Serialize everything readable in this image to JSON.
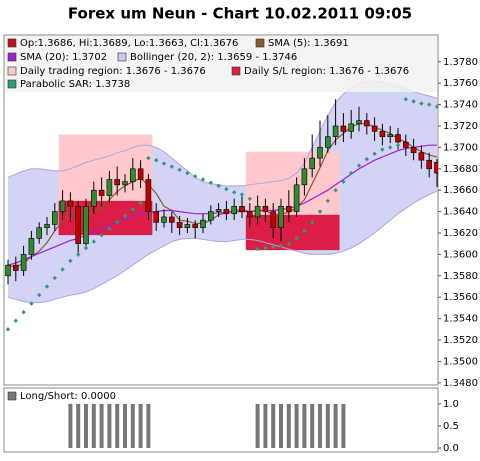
{
  "chart_data": {
    "type": "candlestick",
    "title": "Forex um Neun - Chart 10.02.2011 09:05",
    "ohlc_label": "Op:1.3686, Hi:1.3689, Lo:1.3663, Cl:1.3676",
    "legend_color": "#c0101a",
    "up_color": "#2e8b2e",
    "down_color": "#c00000",
    "open": [
      1.358,
      1.359,
      1.3585,
      1.36,
      1.3615,
      1.3625,
      1.3628,
      1.364,
      1.365,
      1.3645,
      1.361,
      1.3645,
      1.366,
      1.3655,
      1.367,
      1.3665,
      1.3668,
      1.368,
      1.367,
      1.364,
      1.363,
      1.3635,
      1.363,
      1.3625,
      1.3628,
      1.3625,
      1.3632,
      1.364,
      1.3642,
      1.3638,
      1.3645,
      1.364,
      1.3635,
      1.3645,
      1.364,
      1.3625,
      1.3645,
      1.364,
      1.3665,
      1.368,
      1.369,
      1.37,
      1.371,
      1.372,
      1.3715,
      1.3722,
      1.3725,
      1.372,
      1.3715,
      1.371,
      1.3712,
      1.3705,
      1.37,
      1.3695,
      1.3688,
      1.3686
    ],
    "high": [
      1.3595,
      1.3598,
      1.3608,
      1.3622,
      1.363,
      1.3635,
      1.3648,
      1.366,
      1.3658,
      1.365,
      1.3652,
      1.3668,
      1.3672,
      1.3678,
      1.3682,
      1.3675,
      1.369,
      1.3688,
      1.3675,
      1.3648,
      1.3642,
      1.364,
      1.3636,
      1.3634,
      1.3632,
      1.3638,
      1.3646,
      1.3648,
      1.365,
      1.3652,
      1.3656,
      1.3648,
      1.3655,
      1.3652,
      1.3648,
      1.3652,
      1.366,
      1.3672,
      1.369,
      1.3712,
      1.3725,
      1.373,
      1.3745,
      1.3732,
      1.3735,
      1.3738,
      1.3732,
      1.3728,
      1.3722,
      1.372,
      1.3718,
      1.3712,
      1.3708,
      1.3702,
      1.3695,
      1.3689
    ],
    "low": [
      1.3572,
      1.3575,
      1.358,
      1.3595,
      1.361,
      1.3618,
      1.3622,
      1.3632,
      1.363,
      1.3598,
      1.3605,
      1.3638,
      1.3645,
      1.3648,
      1.3655,
      1.3658,
      1.366,
      1.3662,
      1.3632,
      1.3622,
      1.3625,
      1.362,
      1.3618,
      1.362,
      1.3615,
      1.362,
      1.3628,
      1.3635,
      1.3632,
      1.3632,
      1.3634,
      1.3626,
      1.3628,
      1.363,
      1.3615,
      1.3612,
      1.363,
      1.3635,
      1.3655,
      1.3672,
      1.3682,
      1.3695,
      1.3702,
      1.3705,
      1.3708,
      1.3715,
      1.3712,
      1.3706,
      1.3702,
      1.3704,
      1.3698,
      1.3692,
      1.3688,
      1.368,
      1.3672,
      1.3663
    ],
    "close": [
      1.359,
      1.3585,
      1.36,
      1.3615,
      1.3625,
      1.3628,
      1.364,
      1.365,
      1.3645,
      1.361,
      1.3645,
      1.366,
      1.3655,
      1.367,
      1.3665,
      1.3668,
      1.368,
      1.367,
      1.364,
      1.363,
      1.3635,
      1.363,
      1.3625,
      1.3628,
      1.3625,
      1.3632,
      1.364,
      1.3642,
      1.3638,
      1.3645,
      1.364,
      1.3635,
      1.3645,
      1.364,
      1.3625,
      1.3645,
      1.364,
      1.3665,
      1.368,
      1.369,
      1.37,
      1.371,
      1.372,
      1.3715,
      1.3722,
      1.3725,
      1.372,
      1.3715,
      1.371,
      1.3712,
      1.3705,
      1.37,
      1.3695,
      1.3688,
      1.368,
      1.3676
    ],
    "ylim": [
      1.3478,
      1.3805
    ],
    "yticks": [
      {
        "value": 1.348,
        "label": "1.3480"
      },
      {
        "value": 1.35,
        "label": "1.3500"
      },
      {
        "value": 1.352,
        "label": "1.3520"
      },
      {
        "value": 1.354,
        "label": "1.3540"
      },
      {
        "value": 1.356,
        "label": "1.3560"
      },
      {
        "value": 1.358,
        "label": "1.3580"
      },
      {
        "value": 1.36,
        "label": "1.3600"
      },
      {
        "value": 1.362,
        "label": "1.3620"
      },
      {
        "value": 1.364,
        "label": "1.3640"
      },
      {
        "value": 1.366,
        "label": "1.3660"
      },
      {
        "value": 1.368,
        "label": "1.3680"
      },
      {
        "value": 1.37,
        "label": "1.3700"
      },
      {
        "value": 1.372,
        "label": "1.3720"
      },
      {
        "value": 1.374,
        "label": "1.3740"
      },
      {
        "value": 1.376,
        "label": "1.3760"
      },
      {
        "value": 1.378,
        "label": "1.3780"
      }
    ],
    "lines": [
      {
        "name": "SMA (5): 1.3691",
        "color": "#8b5a2b",
        "values": [
          1.359,
          1.3588,
          1.3592,
          1.3598,
          1.3603,
          1.3611,
          1.3622,
          1.3632,
          1.364,
          1.3635,
          1.3636,
          1.364,
          1.3643,
          1.3651,
          1.3659,
          1.3664,
          1.3668,
          1.3671,
          1.3665,
          1.3657,
          1.3645,
          1.3641,
          1.3632,
          1.3631,
          1.3629,
          1.3629,
          1.3632,
          1.3637,
          1.3639,
          1.3641,
          1.3642,
          1.364,
          1.3641,
          1.3641,
          1.3637,
          1.3638,
          1.3639,
          1.3644,
          1.3651,
          1.3666,
          1.3681,
          1.3697,
          1.3707,
          1.3713,
          1.3719,
          1.3722,
          1.3722,
          1.3719,
          1.3716,
          1.3713,
          1.3708,
          1.3705,
          1.37,
          1.3696,
          1.3693,
          1.3691
        ]
      },
      {
        "name": "SMA (20): 1.3702",
        "color": "#a020d0",
        "values": [
          1.359,
          1.3592,
          1.3595,
          1.3598,
          1.3601,
          1.3604,
          1.3607,
          1.361,
          1.3613,
          1.3615,
          1.3618,
          1.3621,
          1.3624,
          1.3627,
          1.363,
          1.3633,
          1.3636,
          1.3638,
          1.3639,
          1.364,
          1.3641,
          1.3641,
          1.364,
          1.3639,
          1.3638,
          1.3638,
          1.3638,
          1.3639,
          1.3639,
          1.364,
          1.364,
          1.364,
          1.3641,
          1.3641,
          1.3641,
          1.3642,
          1.3643,
          1.3645,
          1.3648,
          1.3652,
          1.3656,
          1.366,
          1.3665,
          1.367,
          1.3675,
          1.368,
          1.3684,
          1.3688,
          1.3691,
          1.3694,
          1.3697,
          1.3699,
          1.37,
          1.3701,
          1.3702,
          1.3702
        ]
      }
    ],
    "band": {
      "name": "Bollinger (20, 2): 1.3659 - 1.3746",
      "color": "#c8c8f4",
      "edge_color": "#a8a8e4",
      "upper": [
        1.3672,
        1.3675,
        1.3678,
        1.368,
        1.368,
        1.3679,
        1.3678,
        1.3678,
        1.368,
        1.3683,
        1.3686,
        1.3688,
        1.369,
        1.3692,
        1.3695,
        1.3697,
        1.37,
        1.3702,
        1.3702,
        1.37,
        1.3696,
        1.369,
        1.3684,
        1.3678,
        1.3672,
        1.3668,
        1.3666,
        1.3665,
        1.3664,
        1.3664,
        1.3664,
        1.3665,
        1.3666,
        1.3667,
        1.3668,
        1.3669,
        1.3671,
        1.3676,
        1.3685,
        1.37,
        1.3715,
        1.373,
        1.3742,
        1.375,
        1.3756,
        1.376,
        1.3762,
        1.3762,
        1.3761,
        1.3759,
        1.3757,
        1.3755,
        1.3752,
        1.375,
        1.3748,
        1.3746
      ],
      "lower": [
        1.356,
        1.3558,
        1.3556,
        1.3555,
        1.3555,
        1.3556,
        1.3558,
        1.356,
        1.3562,
        1.3563,
        1.3565,
        1.3568,
        1.3572,
        1.3576,
        1.358,
        1.3585,
        1.359,
        1.3595,
        1.36,
        1.3604,
        1.3608,
        1.3612,
        1.3614,
        1.3615,
        1.3615,
        1.3614,
        1.3613,
        1.3612,
        1.3612,
        1.3613,
        1.3614,
        1.3614,
        1.3613,
        1.3611,
        1.3609,
        1.3607,
        1.3605,
        1.3603,
        1.3601,
        1.36,
        1.36,
        1.36,
        1.3601,
        1.3603,
        1.3606,
        1.361,
        1.3615,
        1.362,
        1.3626,
        1.3632,
        1.3638,
        1.3643,
        1.3648,
        1.3652,
        1.3656,
        1.3659
      ]
    },
    "regions": [
      {
        "name": "Daily trading region: 1.3676 - 1.3676",
        "color": "#ffc8cc",
        "spans": [
          {
            "first": 7,
            "last": 18,
            "low": 1.362,
            "high": 1.3712
          },
          {
            "first": 31,
            "last": 42,
            "low": 1.3604,
            "high": 1.3696
          }
        ]
      },
      {
        "name": "Daily S/L region: 1.3676 - 1.3676",
        "color": "#dc1e46",
        "spans": [
          {
            "first": 7,
            "last": 18,
            "low": 1.3618,
            "high": 1.365
          },
          {
            "first": 31,
            "last": 42,
            "low": 1.3604,
            "high": 1.3637
          }
        ]
      }
    ],
    "sar": {
      "name": "Parabolic SAR: 1.3738",
      "color": "#2e9a7a",
      "values": [
        1.353,
        1.3538,
        1.3546,
        1.3554,
        1.3562,
        1.357,
        1.3578,
        1.3586,
        1.3594,
        1.36,
        1.3606,
        1.3612,
        1.3618,
        1.3624,
        1.363,
        1.3636,
        1.3642,
        1.3648,
        1.369,
        1.3688,
        1.3685,
        1.3682,
        1.3679,
        1.3676,
        1.3673,
        1.367,
        1.3667,
        1.3664,
        1.3661,
        1.3658,
        1.3656,
        1.3652,
        1.3605,
        1.3606,
        1.3607,
        1.3608,
        1.361,
        1.3615,
        1.3622,
        1.363,
        1.364,
        1.365,
        1.366,
        1.3668,
        1.3676,
        1.3683,
        1.3689,
        1.3694,
        1.3698,
        1.37,
        1.3702,
        1.3745,
        1.3743,
        1.3741,
        1.374,
        1.3738
      ]
    },
    "lower": {
      "type": "bar",
      "name": "Long/Short: 0.0000",
      "color": "#777777",
      "values": [
        0,
        0,
        0,
        0,
        0,
        0,
        0,
        0,
        1,
        1,
        1,
        1,
        1,
        1,
        1,
        1,
        1,
        1,
        1,
        0,
        0,
        0,
        0,
        0,
        0,
        0,
        0,
        0,
        0,
        0,
        0,
        0,
        1,
        1,
        1,
        1,
        1,
        1,
        1,
        1,
        1,
        1,
        1,
        1,
        0,
        0,
        0,
        0,
        0,
        0,
        0,
        0,
        0,
        0,
        0,
        0
      ],
      "ylim": [
        -0.09,
        1.36
      ],
      "yticks": [
        {
          "value": 0,
          "label": "0.0"
        },
        {
          "value": 0.5,
          "label": "0.5"
        },
        {
          "value": 1,
          "label": "1.0"
        }
      ]
    }
  }
}
